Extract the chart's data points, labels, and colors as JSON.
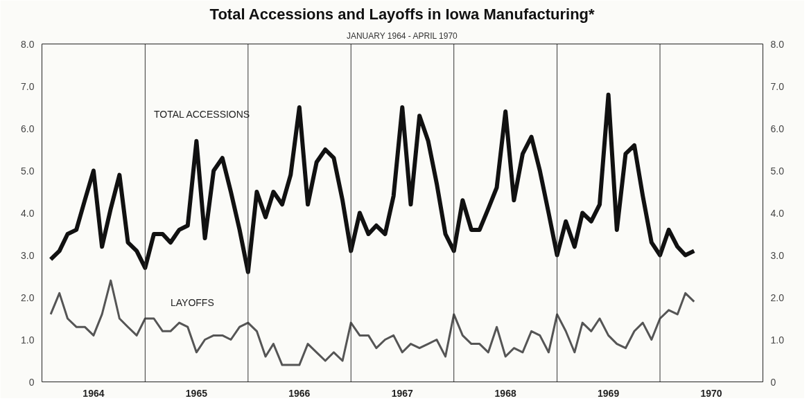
{
  "chart_data": {
    "type": "line",
    "title": "Total Accessions and Layoffs in Iowa Manufacturing*",
    "subtitle": "JANUARY 1964 - APRIL 1970",
    "x": [
      "1964-01",
      "1964-02",
      "1964-03",
      "1964-04",
      "1964-05",
      "1964-06",
      "1964-07",
      "1964-08",
      "1964-09",
      "1964-10",
      "1964-11",
      "1964-12",
      "1965-01",
      "1965-02",
      "1965-03",
      "1965-04",
      "1965-05",
      "1965-06",
      "1965-07",
      "1965-08",
      "1965-09",
      "1965-10",
      "1965-11",
      "1965-12",
      "1966-01",
      "1966-02",
      "1966-03",
      "1966-04",
      "1966-05",
      "1966-06",
      "1966-07",
      "1966-08",
      "1966-09",
      "1966-10",
      "1966-11",
      "1966-12",
      "1967-01",
      "1967-02",
      "1967-03",
      "1967-04",
      "1967-05",
      "1967-06",
      "1967-07",
      "1967-08",
      "1967-09",
      "1967-10",
      "1967-11",
      "1967-12",
      "1968-01",
      "1968-02",
      "1968-03",
      "1968-04",
      "1968-05",
      "1968-06",
      "1968-07",
      "1968-08",
      "1968-09",
      "1968-10",
      "1968-11",
      "1968-12",
      "1969-01",
      "1969-02",
      "1969-03",
      "1969-04",
      "1969-05",
      "1969-06",
      "1969-07",
      "1969-08",
      "1969-09",
      "1969-10",
      "1969-11",
      "1969-12",
      "1970-01",
      "1970-02",
      "1970-03",
      "1970-04"
    ],
    "series": [
      {
        "name": "TOTAL ACCESSIONS",
        "color": "#111111",
        "values": [
          2.9,
          3.1,
          3.5,
          3.6,
          4.3,
          5.0,
          3.2,
          4.1,
          4.9,
          3.3,
          3.1,
          2.7,
          3.5,
          3.5,
          3.3,
          3.6,
          3.7,
          5.7,
          3.4,
          5.0,
          5.3,
          4.5,
          3.6,
          2.6,
          4.5,
          3.9,
          4.5,
          4.2,
          4.9,
          6.5,
          4.2,
          5.2,
          5.5,
          5.3,
          4.3,
          3.1,
          4.0,
          3.5,
          3.7,
          3.5,
          4.4,
          6.5,
          4.2,
          6.3,
          5.7,
          4.7,
          3.5,
          3.1,
          4.3,
          3.6,
          3.6,
          4.1,
          4.6,
          6.4,
          4.3,
          5.4,
          5.8,
          5.0,
          4.0,
          3.0,
          3.8,
          3.2,
          4.0,
          3.8,
          4.2,
          6.8,
          3.6,
          5.4,
          5.6,
          4.4,
          3.3,
          3.0,
          3.6,
          3.2,
          3.0,
          3.1
        ]
      },
      {
        "name": "LAYOFFS",
        "color": "#555555",
        "values": [
          1.6,
          2.1,
          1.5,
          1.3,
          1.3,
          1.1,
          1.6,
          2.4,
          1.5,
          1.3,
          1.1,
          1.5,
          1.5,
          1.2,
          1.2,
          1.4,
          1.3,
          0.7,
          1.0,
          1.1,
          1.1,
          1.0,
          1.3,
          1.4,
          1.2,
          0.6,
          0.9,
          0.4,
          0.4,
          0.4,
          0.9,
          0.7,
          0.5,
          0.7,
          0.5,
          1.4,
          1.1,
          1.1,
          0.8,
          1.0,
          1.1,
          0.7,
          0.9,
          0.8,
          0.9,
          1.0,
          0.6,
          1.6,
          1.1,
          0.9,
          0.9,
          0.7,
          1.3,
          0.6,
          0.8,
          0.7,
          1.2,
          1.1,
          0.7,
          1.6,
          1.2,
          0.7,
          1.4,
          1.2,
          1.5,
          1.1,
          0.9,
          0.8,
          1.2,
          1.4,
          1.0,
          1.5,
          1.7,
          1.6,
          2.1,
          1.9
        ]
      }
    ],
    "xlim": [
      "1963-12",
      "1970-12"
    ],
    "xticks": [
      {
        "value": "1964-06",
        "label": "1964"
      },
      {
        "value": "1965-06",
        "label": "1965"
      },
      {
        "value": "1966-06",
        "label": "1966"
      },
      {
        "value": "1967-06",
        "label": "1967"
      },
      {
        "value": "1968-06",
        "label": "1968"
      },
      {
        "value": "1969-06",
        "label": "1969"
      },
      {
        "value": "1970-06",
        "label": "1970"
      }
    ],
    "ylim": [
      0,
      8
    ],
    "yticks": [
      0,
      {
        "value": 1,
        "label": "1.0"
      },
      {
        "value": 2,
        "label": "2.0"
      },
      {
        "value": 3,
        "label": "3.0"
      },
      {
        "value": 4,
        "label": "4.0"
      },
      {
        "value": 5,
        "label": "5.0"
      },
      {
        "value": 6,
        "label": "6.0"
      },
      {
        "value": 7,
        "label": "7.0"
      },
      {
        "value": 8,
        "label": "8.0"
      }
    ],
    "y2lim": [
      0,
      8
    ],
    "y2ticks": [
      0,
      {
        "value": 1,
        "label": "1.0"
      },
      {
        "value": 2,
        "label": "2.0"
      },
      {
        "value": 3,
        "label": "3.0"
      },
      {
        "value": 4,
        "label": "4.0"
      },
      {
        "value": 5,
        "label": "5.0"
      },
      {
        "value": 6,
        "label": "6.0"
      },
      {
        "value": 7,
        "label": "7.0"
      },
      {
        "value": 8,
        "label": "8.0"
      }
    ],
    "ref_lines": [
      {
        "axis": "x",
        "value": "1964-12",
        "color": "#333333"
      },
      {
        "axis": "x",
        "value": "1965-12",
        "color": "#333333"
      },
      {
        "axis": "x",
        "value": "1966-12",
        "color": "#333333"
      },
      {
        "axis": "x",
        "value": "1967-12",
        "color": "#333333"
      },
      {
        "axis": "x",
        "value": "1968-12",
        "color": "#333333"
      },
      {
        "axis": "x",
        "value": "1969-12",
        "color": "#333333"
      }
    ],
    "grid": false,
    "marker": "none",
    "line_style": "solid"
  }
}
